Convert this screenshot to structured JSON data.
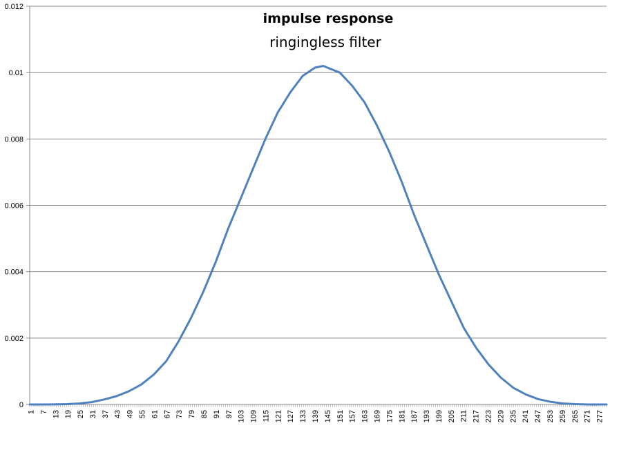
{
  "chart_data": {
    "type": "line",
    "title": "impulse response",
    "subtitle": "ringingless filter",
    "xlabel": "",
    "ylabel": "",
    "x_tick_labels": [
      "1",
      "7",
      "13",
      "19",
      "25",
      "31",
      "37",
      "43",
      "49",
      "55",
      "61",
      "67",
      "73",
      "79",
      "85",
      "91",
      "97",
      "103",
      "109",
      "115",
      "121",
      "127",
      "133",
      "139",
      "145",
      "151",
      "157",
      "163",
      "169",
      "175",
      "181",
      "187",
      "193",
      "199",
      "205",
      "211",
      "217",
      "223",
      "229",
      "235",
      "241",
      "247",
      "253",
      "259",
      "265",
      "271",
      "277"
    ],
    "y_tick_labels": [
      "0",
      "0.002",
      "0.004",
      "0.006",
      "0.008",
      "0.01",
      "0.012"
    ],
    "xlim": [
      1,
      280
    ],
    "ylim": [
      0,
      0.012
    ],
    "grid": "horizontal",
    "legend": "none",
    "series": [
      {
        "color": "#4f81bd",
        "points": [
          [
            1,
            0
          ],
          [
            10,
            0
          ],
          [
            19,
            1e-05
          ],
          [
            25,
            3e-05
          ],
          [
            31,
            7e-05
          ],
          [
            37,
            0.00015
          ],
          [
            43,
            0.00025
          ],
          [
            49,
            0.0004
          ],
          [
            55,
            0.0006
          ],
          [
            61,
            0.0009
          ],
          [
            67,
            0.0013
          ],
          [
            73,
            0.0019
          ],
          [
            79,
            0.0026
          ],
          [
            85,
            0.0034
          ],
          [
            91,
            0.0043
          ],
          [
            97,
            0.0053
          ],
          [
            103,
            0.0062
          ],
          [
            109,
            0.0071
          ],
          [
            115,
            0.008
          ],
          [
            121,
            0.0088
          ],
          [
            127,
            0.0094
          ],
          [
            133,
            0.0099
          ],
          [
            139,
            0.01015
          ],
          [
            143,
            0.0102
          ],
          [
            145,
            0.01015
          ],
          [
            151,
            0.01
          ],
          [
            157,
            0.0096
          ],
          [
            163,
            0.0091
          ],
          [
            169,
            0.0084
          ],
          [
            175,
            0.0076
          ],
          [
            181,
            0.0067
          ],
          [
            187,
            0.0057
          ],
          [
            193,
            0.0048
          ],
          [
            199,
            0.0039
          ],
          [
            205,
            0.0031
          ],
          [
            211,
            0.0023
          ],
          [
            217,
            0.0017
          ],
          [
            223,
            0.0012
          ],
          [
            229,
            0.0008
          ],
          [
            235,
            0.0005
          ],
          [
            241,
            0.0003
          ],
          [
            247,
            0.00016
          ],
          [
            253,
            8e-05
          ],
          [
            259,
            3e-05
          ],
          [
            265,
            1e-05
          ],
          [
            271,
            0
          ],
          [
            280,
            0
          ]
        ]
      }
    ]
  }
}
